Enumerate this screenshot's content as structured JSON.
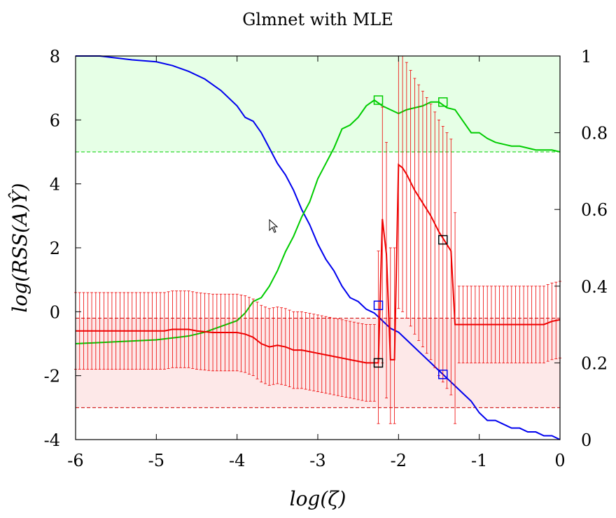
{
  "chart_data": {
    "type": "line",
    "title": "Glmnet with MLE",
    "xlabel": "log(ζ)",
    "ylabel": "log(RSS(A)Ŷ)",
    "xlim": [
      -6,
      0
    ],
    "ylim": [
      -4,
      8
    ],
    "y2lim": [
      0,
      1
    ],
    "x_ticks": [
      "-6",
      "-5",
      "-4",
      "-3",
      "-2",
      "-1",
      "0"
    ],
    "y_ticks": [
      "-4",
      "-2",
      "0",
      "2",
      "4",
      "6",
      "8"
    ],
    "y2_ticks": [
      "0",
      "0.2",
      "0.4",
      "0.6",
      "0.8",
      "1"
    ],
    "grid": false,
    "legend": "none",
    "bands": [
      {
        "axis": "y2",
        "from": 0.75,
        "to": 1.0,
        "color": "#e6ffe6",
        "line_at": 0.75,
        "line_color": "#00cc00"
      },
      {
        "axis": "y",
        "from": -3.0,
        "to": -0.2,
        "color": "#fde8e8",
        "line_at": [
          -0.2,
          -3.0
        ],
        "line_color": "#cc0000"
      }
    ],
    "series": [
      {
        "color": "#0000ee",
        "axis": "y2",
        "x": [
          -6.0,
          -5.7,
          -5.5,
          -5.3,
          -5.0,
          -4.8,
          -4.6,
          -4.4,
          -4.2,
          -4.0,
          -3.9,
          -3.8,
          -3.7,
          -3.6,
          -3.5,
          -3.4,
          -3.3,
          -3.2,
          -3.1,
          -3.0,
          -2.9,
          -2.8,
          -2.7,
          -2.6,
          -2.5,
          -2.4,
          -2.3,
          -2.2,
          -2.1,
          -2.0,
          -1.9,
          -1.8,
          -1.7,
          -1.6,
          -1.5,
          -1.4,
          -1.3,
          -1.2,
          -1.1,
          -1.0,
          -0.9,
          -0.8,
          -0.7,
          -0.6,
          -0.5,
          -0.4,
          -0.3,
          -0.2,
          -0.1,
          0.0
        ],
        "values": [
          1.0,
          1.0,
          0.995,
          0.99,
          0.985,
          0.975,
          0.96,
          0.94,
          0.91,
          0.87,
          0.84,
          0.83,
          0.8,
          0.76,
          0.72,
          0.69,
          0.65,
          0.6,
          0.56,
          0.51,
          0.47,
          0.44,
          0.4,
          0.37,
          0.36,
          0.34,
          0.33,
          0.31,
          0.29,
          0.28,
          0.26,
          0.24,
          0.22,
          0.2,
          0.18,
          0.16,
          0.14,
          0.12,
          0.1,
          0.07,
          0.05,
          0.05,
          0.04,
          0.03,
          0.03,
          0.02,
          0.02,
          0.01,
          0.01,
          0.0
        ]
      },
      {
        "color": "#00cc00",
        "axis": "y2",
        "x": [
          -6.0,
          -5.5,
          -5.0,
          -4.8,
          -4.6,
          -4.4,
          -4.2,
          -4.0,
          -3.9,
          -3.8,
          -3.7,
          -3.6,
          -3.5,
          -3.4,
          -3.3,
          -3.2,
          -3.1,
          -3.0,
          -2.9,
          -2.8,
          -2.7,
          -2.6,
          -2.5,
          -2.4,
          -2.3,
          -2.2,
          -2.1,
          -2.0,
          -1.9,
          -1.8,
          -1.7,
          -1.6,
          -1.5,
          -1.4,
          -1.3,
          -1.2,
          -1.1,
          -1.0,
          -0.9,
          -0.8,
          -0.7,
          -0.6,
          -0.5,
          -0.4,
          -0.3,
          -0.2,
          -0.1,
          0.0
        ],
        "values": [
          0.25,
          0.255,
          0.26,
          0.265,
          0.27,
          0.28,
          0.295,
          0.31,
          0.33,
          0.36,
          0.37,
          0.4,
          0.44,
          0.49,
          0.53,
          0.58,
          0.62,
          0.68,
          0.72,
          0.76,
          0.81,
          0.82,
          0.84,
          0.87,
          0.885,
          0.87,
          0.86,
          0.85,
          0.86,
          0.865,
          0.87,
          0.88,
          0.88,
          0.865,
          0.86,
          0.83,
          0.8,
          0.8,
          0.785,
          0.775,
          0.77,
          0.765,
          0.765,
          0.76,
          0.755,
          0.755,
          0.755,
          0.75
        ]
      },
      {
        "color": "#ee0000",
        "axis": "y",
        "error": 1.2,
        "x": [
          -6.0,
          -5.6,
          -5.2,
          -4.9,
          -4.8,
          -4.6,
          -4.5,
          -4.3,
          -4.0,
          -3.9,
          -3.8,
          -3.7,
          -3.6,
          -3.5,
          -3.4,
          -3.3,
          -3.2,
          -3.1,
          -3.0,
          -2.9,
          -2.8,
          -2.7,
          -2.6,
          -2.5,
          -2.4,
          -2.3,
          -2.25,
          -2.2,
          -2.15,
          -2.1,
          -2.05,
          -2.0,
          -1.95,
          -1.9,
          -1.8,
          -1.7,
          -1.6,
          -1.5,
          -1.4,
          -1.35,
          -1.3,
          -1.2,
          -1.0,
          -0.8,
          -0.6,
          -0.4,
          -0.2,
          -0.1,
          0.0
        ],
        "values": [
          -0.6,
          -0.6,
          -0.6,
          -0.6,
          -0.55,
          -0.55,
          -0.6,
          -0.65,
          -0.65,
          -0.7,
          -0.8,
          -1.0,
          -1.1,
          -1.05,
          -1.1,
          -1.2,
          -1.2,
          -1.25,
          -1.3,
          -1.35,
          -1.4,
          -1.45,
          -1.5,
          -1.55,
          -1.6,
          -1.6,
          -1.6,
          2.9,
          1.8,
          -1.5,
          -1.5,
          4.6,
          4.5,
          4.3,
          3.8,
          3.4,
          3.0,
          2.5,
          2.1,
          1.9,
          -0.4,
          -0.4,
          -0.4,
          -0.4,
          -0.4,
          -0.4,
          -0.4,
          -0.3,
          -0.25
        ],
        "error_up": 5.6,
        "error_dn": 4.4
      }
    ],
    "markers": [
      {
        "color": "#00cc00",
        "axis": "y2",
        "x": -2.25,
        "y": 0.885
      },
      {
        "color": "#00cc00",
        "axis": "y2",
        "x": -1.45,
        "y": 0.88
      },
      {
        "color": "#0000ee",
        "axis": "y2",
        "x": -2.25,
        "y": 0.35
      },
      {
        "color": "#0000ee",
        "axis": "y2",
        "x": -1.45,
        "y": 0.17
      },
      {
        "color": "#000000",
        "axis": "y",
        "x": -2.25,
        "y": -1.6
      },
      {
        "color": "#000000",
        "axis": "y",
        "x": -1.45,
        "y": 2.25
      }
    ]
  }
}
